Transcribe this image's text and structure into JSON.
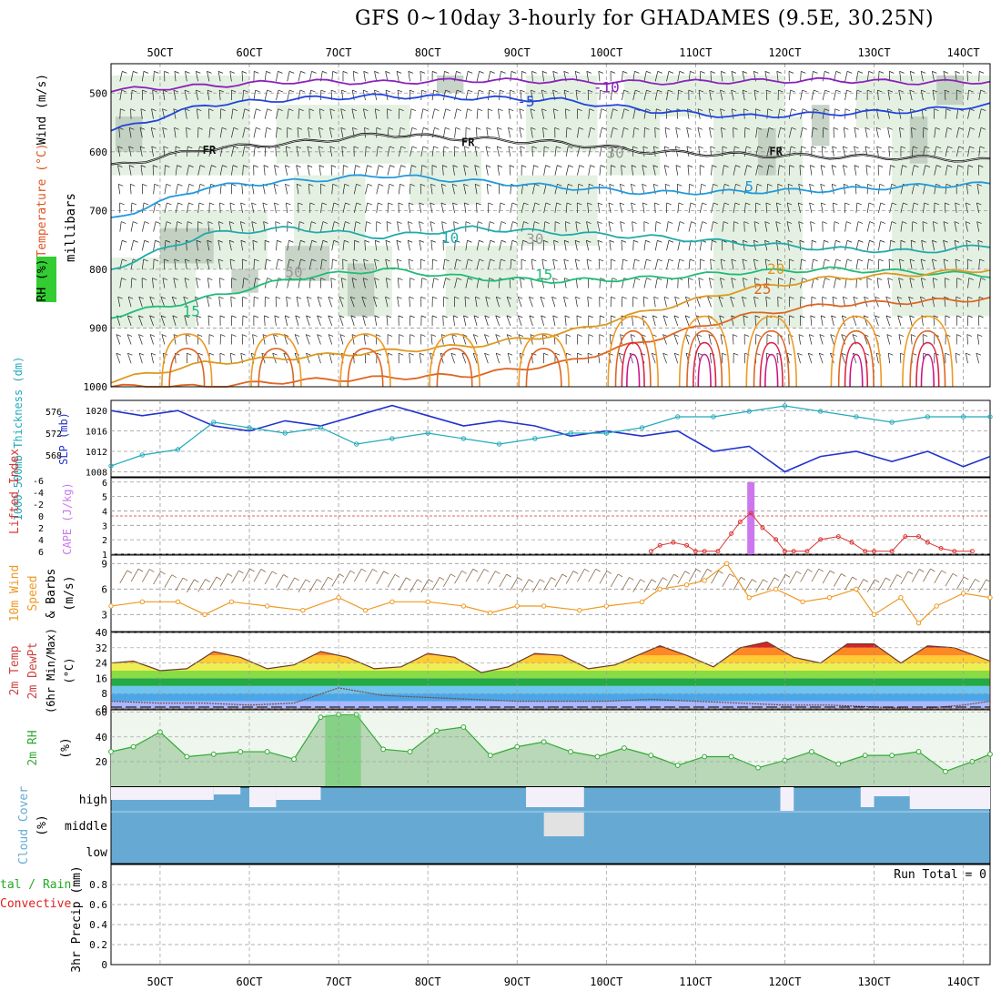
{
  "title": "GFS 0~10day 3-hourly for GHADAMES (9.5E, 30.25N)",
  "time_axis": {
    "labels": [
      "5OCT",
      "6OCT",
      "7OCT",
      "8OCT",
      "9OCT",
      "10OCT",
      "11OCT",
      "12OCT",
      "13OCT",
      "14OCT"
    ],
    "range_days": [
      4.45,
      14.3
    ]
  },
  "colors": {
    "rh_shade": "#dfeedd",
    "rh_shade_dark": "#b9c9b9",
    "wind_barb": "#000000",
    "slp": "#2233cc",
    "thickness": "#22aabb",
    "cape": "#cc77ee",
    "lifted_index": "#dd3333",
    "wind10m": "#ee9922",
    "rh2m": "#33aa33",
    "cloud": "#66aad4"
  },
  "chart_data": [
    {
      "name": "upper-air",
      "type": "heatmap",
      "ylabel_parts": {
        "wind": "Wind (m/s)",
        "temperature": "Temperature (°C)",
        "rh": "RH (%)",
        "units": "millibars"
      },
      "y_ticks": [
        500,
        600,
        700,
        800,
        900,
        1000
      ],
      "ylim": [
        450,
        1000
      ],
      "contour_labels": [
        "-10",
        "-5",
        "FR",
        "FR",
        "FR",
        "5",
        "10",
        "15",
        "15",
        "20",
        "25",
        "30",
        "30",
        "50"
      ],
      "isotherms": [
        {
          "label": "-10",
          "color": "#8a22bb",
          "x": [
            4.45,
            5.5,
            6.5,
            7.5,
            8.5,
            9.5,
            10.5,
            11.5,
            12.5,
            13.5,
            14.3
          ],
          "y": [
            495,
            488,
            480,
            482,
            478,
            480,
            482,
            480,
            478,
            482,
            480
          ]
        },
        {
          "label": "-5",
          "color": "#2244dd",
          "x": [
            4.45,
            5.5,
            6.5,
            7.5,
            8.5,
            9.5,
            10.5,
            11.5,
            12.5,
            13.5,
            14.3
          ],
          "y": [
            565,
            520,
            510,
            505,
            508,
            512,
            530,
            540,
            535,
            530,
            520
          ]
        },
        {
          "label": "FR",
          "color": "#111111",
          "x": [
            4.45,
            5.5,
            6.5,
            7.5,
            8.5,
            9.5,
            10.5,
            11.5,
            12.5,
            13.5,
            14.3
          ],
          "y": [
            625,
            595,
            585,
            570,
            578,
            585,
            600,
            605,
            608,
            610,
            615
          ]
        },
        {
          "label": "5",
          "color": "#2299dd",
          "x": [
            4.45,
            5.5,
            6.5,
            7.5,
            8.5,
            9.5,
            10.5,
            11.5,
            12.5,
            13.5,
            14.3
          ],
          "y": [
            715,
            660,
            650,
            640,
            650,
            660,
            670,
            668,
            665,
            658,
            655
          ]
        },
        {
          "label": "10",
          "color": "#22aaaa",
          "x": [
            4.45,
            5.5,
            6.5,
            7.5,
            8.5,
            9.5,
            10.5,
            11.5,
            12.5,
            13.5,
            14.3
          ],
          "y": [
            800,
            740,
            730,
            745,
            730,
            738,
            745,
            755,
            765,
            770,
            760
          ]
        },
        {
          "label": "15",
          "color": "#22bb77",
          "x": [
            4.45,
            5.5,
            6.5,
            7.5,
            8.5,
            9.5,
            10.5,
            11.5,
            12.5,
            13.5,
            14.3
          ],
          "y": [
            880,
            850,
            815,
            800,
            815,
            820,
            815,
            805,
            800,
            805,
            810
          ]
        },
        {
          "label": "20",
          "color": "#dd9922",
          "x": [
            4.45,
            5.5,
            6.5,
            7.5,
            8.5,
            9.5,
            10.5,
            11.5,
            12.5,
            13.5,
            14.3
          ],
          "y": [
            990,
            960,
            950,
            940,
            930,
            910,
            870,
            835,
            815,
            808,
            800
          ]
        },
        {
          "label": "25",
          "color": "#dd6622",
          "x": [
            4.45,
            5.5,
            6.5,
            7.5,
            8.5,
            9.5,
            10.5,
            11.5,
            12.5,
            13.5,
            14.3
          ],
          "y": [
            1000,
            1000,
            990,
            985,
            980,
            960,
            920,
            880,
            860,
            855,
            850
          ]
        }
      ]
    },
    {
      "name": "slp-thickness",
      "type": "line",
      "y_left": {
        "label": "1000-500mb Thickness (dm)",
        "ticks": [
          568,
          572,
          576
        ],
        "range": [
          564,
          578
        ]
      },
      "y_right": {
        "label": "SLP (mb)",
        "ticks": [
          1008,
          1012,
          1016,
          1020
        ],
        "range": [
          1007,
          1022
        ]
      },
      "series": [
        {
          "name": "SLP",
          "color": "#2233cc",
          "x": [
            4.45,
            4.8,
            5.2,
            5.6,
            6.0,
            6.4,
            6.8,
            7.2,
            7.6,
            8.0,
            8.4,
            8.8,
            9.2,
            9.6,
            10.0,
            10.4,
            10.8,
            11.2,
            11.6,
            12.0,
            12.4,
            12.8,
            13.2,
            13.6,
            14.0,
            14.3
          ],
          "y": [
            1020,
            1019,
            1020,
            1017,
            1016,
            1018,
            1017,
            1019,
            1021,
            1019,
            1017,
            1018,
            1017,
            1015,
            1016,
            1015,
            1016,
            1012,
            1013,
            1008,
            1011,
            1012,
            1010,
            1012,
            1009,
            1011
          ]
        },
        {
          "name": "Thickness",
          "color": "#22aabb",
          "x": [
            4.45,
            4.8,
            5.2,
            5.6,
            6.0,
            6.4,
            6.8,
            7.2,
            7.6,
            8.0,
            8.4,
            8.8,
            9.2,
            9.6,
            10.0,
            10.4,
            10.8,
            11.2,
            11.6,
            12.0,
            12.4,
            12.8,
            13.2,
            13.6,
            14.0,
            14.3
          ],
          "y": [
            566,
            568,
            569,
            574,
            573,
            572,
            573,
            570,
            571,
            572,
            571,
            570,
            571,
            572,
            572,
            573,
            575,
            575,
            576,
            577,
            576,
            575,
            574,
            575,
            575,
            575
          ]
        }
      ]
    },
    {
      "name": "cape-li",
      "type": "bar",
      "y_left": {
        "label": "Lifted Index",
        "ticks": [
          -6,
          -4,
          -2,
          0,
          2,
          4,
          6
        ]
      },
      "y_right": {
        "label": "CAPE (J/kg)",
        "ticks": [
          1,
          2,
          3,
          4,
          5,
          6
        ]
      },
      "cape_bars": [
        {
          "x": 11.62,
          "value": 6
        }
      ],
      "lifted_index": {
        "x": [
          10.5,
          10.6,
          10.75,
          10.9,
          11.0,
          11.1,
          11.25,
          11.4,
          11.5,
          11.62,
          11.75,
          11.9,
          12.0,
          12.1,
          12.25,
          12.4,
          12.6,
          12.75,
          12.9,
          13.0,
          13.2,
          13.35,
          13.5,
          13.6,
          13.75,
          13.9,
          14.1
        ],
        "y": [
          6,
          5,
          4.5,
          5,
          6,
          6,
          6,
          3,
          1,
          -0.5,
          2,
          4,
          6,
          6,
          6,
          4,
          3.5,
          4.5,
          6,
          6,
          6,
          3.5,
          3.5,
          4.5,
          5.5,
          6,
          6
        ]
      },
      "reference_line": 0
    },
    {
      "name": "wind10m",
      "type": "line",
      "ylabel": "10m Wind Speed & Barbs (m/s)",
      "y_ticks": [
        3,
        6,
        9
      ],
      "ylim": [
        1,
        10
      ],
      "series": [
        {
          "name": "Speed",
          "color": "#ee9922",
          "x": [
            4.45,
            4.8,
            5.2,
            5.5,
            5.8,
            6.2,
            6.6,
            7.0,
            7.3,
            7.6,
            8.0,
            8.4,
            8.7,
            9.0,
            9.3,
            9.7,
            10.0,
            10.4,
            10.6,
            10.9,
            11.1,
            11.35,
            11.6,
            11.9,
            12.2,
            12.5,
            12.8,
            13.0,
            13.3,
            13.5,
            13.7,
            14.0,
            14.3
          ],
          "y": [
            4,
            4.5,
            4.5,
            3,
            4.5,
            4,
            3.5,
            5,
            3.5,
            4.5,
            4.5,
            4,
            3.2,
            4,
            4,
            3.5,
            4,
            4.5,
            6,
            6.5,
            7,
            9,
            5,
            6,
            4.5,
            5,
            6,
            3,
            5,
            2,
            4,
            5.5,
            5
          ]
        }
      ]
    },
    {
      "name": "temp2m",
      "type": "area",
      "ylabel": "2m Temp 2m DewPt (6hr Min/Max) (°C)",
      "y_ticks": [
        0,
        8,
        16,
        24,
        32,
        40
      ],
      "ylim": [
        0,
        40
      ],
      "series": [
        {
          "name": "Temp",
          "x": [
            4.45,
            4.7,
            5.0,
            5.3,
            5.6,
            5.9,
            6.2,
            6.5,
            6.8,
            7.1,
            7.4,
            7.7,
            8.0,
            8.3,
            8.6,
            8.9,
            9.2,
            9.5,
            9.8,
            10.1,
            10.4,
            10.6,
            10.9,
            11.2,
            11.5,
            11.8,
            12.1,
            12.4,
            12.7,
            13.0,
            13.3,
            13.6,
            13.9,
            14.3
          ],
          "y": [
            24,
            25,
            20,
            21,
            30,
            27,
            21,
            23,
            30,
            27,
            21,
            22,
            29,
            27,
            19,
            22,
            29,
            28,
            21,
            23,
            29,
            33,
            28,
            22,
            32,
            35,
            27,
            24,
            34,
            34,
            24,
            33,
            32,
            25
          ]
        },
        {
          "name": "DewPt",
          "x": [
            4.45,
            5.0,
            5.5,
            6.0,
            6.5,
            7.0,
            7.5,
            8.0,
            8.5,
            9.0,
            9.5,
            10.0,
            10.5,
            11.0,
            11.5,
            12.0,
            12.5,
            13.0,
            13.5,
            14.0,
            14.3
          ],
          "y": [
            4,
            3,
            3,
            2,
            3,
            11,
            7,
            6,
            5,
            4,
            4,
            4,
            5,
            4,
            3,
            2,
            2,
            1,
            0,
            2,
            4
          ]
        }
      ]
    },
    {
      "name": "rh2m",
      "type": "area",
      "ylabel": "2m RH (%)",
      "y_ticks": [
        20,
        40,
        60
      ],
      "ylim": [
        0,
        62
      ],
      "series": [
        {
          "name": "RH",
          "x": [
            4.45,
            4.7,
            5.0,
            5.3,
            5.6,
            5.9,
            6.2,
            6.5,
            6.8,
            7.0,
            7.2,
            7.5,
            7.8,
            8.1,
            8.4,
            8.7,
            9.0,
            9.3,
            9.6,
            9.9,
            10.2,
            10.5,
            10.8,
            11.1,
            11.4,
            11.7,
            12.0,
            12.3,
            12.6,
            12.9,
            13.2,
            13.5,
            13.8,
            14.1,
            14.3
          ],
          "y": [
            28,
            32,
            44,
            24,
            26,
            28,
            28,
            22,
            56,
            58,
            58,
            30,
            28,
            45,
            48,
            25,
            32,
            36,
            28,
            24,
            31,
            25,
            17,
            24,
            24,
            15,
            21,
            28,
            18,
            25,
            25,
            28,
            12,
            20,
            26
          ]
        }
      ]
    },
    {
      "name": "cloud-cover",
      "type": "heatmap",
      "ylabel": "Cloud Cover (%)",
      "levels": [
        "high",
        "middle",
        "low"
      ]
    },
    {
      "name": "precip",
      "type": "bar",
      "ylabel_parts": {
        "main": "3hr Precip (mm)",
        "total_rain": "tal / Rain",
        "convective": "Convective"
      },
      "y_ticks": [
        "0",
        "0.2",
        "0.4",
        "0.6",
        "0.8"
      ],
      "ylim": [
        0,
        1
      ],
      "annotation": "Run Total = 0",
      "values": []
    }
  ]
}
